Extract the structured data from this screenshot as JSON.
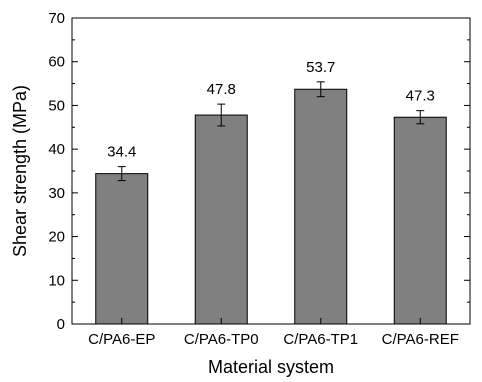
{
  "chart_data": {
    "type": "bar",
    "categories": [
      "C/PA6-EP",
      "C/PA6-TP0",
      "C/PA6-TP1",
      "C/PA6-REF"
    ],
    "values": [
      34.4,
      47.8,
      53.7,
      47.3
    ],
    "errors": [
      1.6,
      2.5,
      1.7,
      1.5
    ],
    "data_labels": [
      "34.4",
      "47.8",
      "53.7",
      "47.3"
    ],
    "xlabel": "Material system",
    "ylabel": "Shear strength (MPa)",
    "ylim": [
      0,
      70
    ],
    "yticks": [
      0,
      10,
      20,
      30,
      40,
      50,
      60,
      70
    ],
    "grid": false,
    "bar_color": "#808080",
    "bar_edge_color": "#000000"
  }
}
